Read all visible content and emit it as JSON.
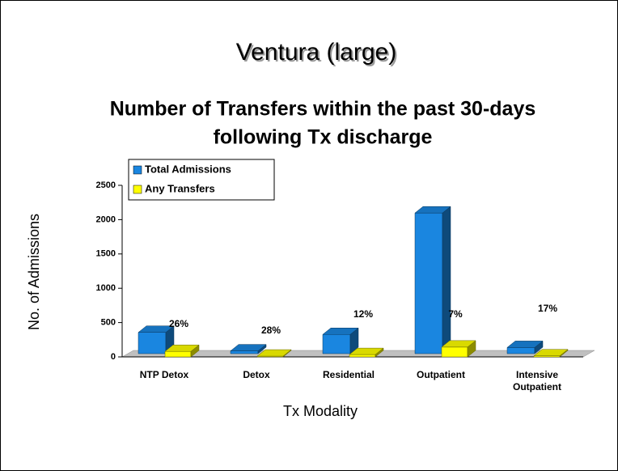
{
  "chart_data": {
    "type": "bar3d",
    "title": "Ventura (large)",
    "subtitle": [
      "Number of Transfers within the past 30-days",
      "following Tx discharge"
    ],
    "y_label": "No. of Admissions",
    "x_label": "Tx Modality",
    "categories": [
      "NTP Detox",
      "Detox",
      "Residential",
      "Outpatient",
      "Intensive Outpatient"
    ],
    "series": [
      {
        "name": "Total Admissions",
        "color": "#1a86e0",
        "values": [
          310,
          40,
          280,
          2050,
          90
        ]
      },
      {
        "name": "Any Transfers",
        "color": "#ffff00",
        "values": [
          80,
          11,
          34,
          143,
          15
        ]
      }
    ],
    "annotations": [
      "26%",
      "28%",
      "12%",
      "7%",
      "17%"
    ],
    "ylim": [
      0,
      2500
    ],
    "yticks": [
      0,
      500,
      1000,
      1500,
      2000,
      2500
    ],
    "legend": "top-left"
  }
}
